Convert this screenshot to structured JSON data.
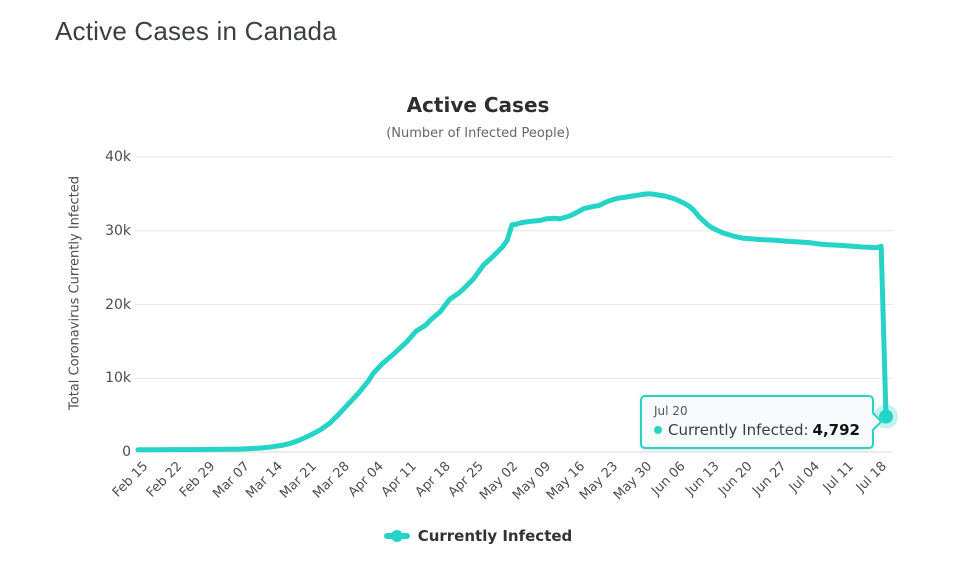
{
  "page": {
    "title": "Active Cases in Canada"
  },
  "chart_data": {
    "type": "line",
    "title": "Active Cases",
    "subtitle": "(Number of Infected People)",
    "xlabel": "",
    "ylabel": "Total Coronavirus Currently Infected",
    "ylim": [
      0,
      40000
    ],
    "grid": "horizontal",
    "legend_position": "bottom-center",
    "yticks": {
      "values": [
        0,
        10000,
        20000,
        30000,
        40000
      ],
      "labels": [
        "0",
        "10k",
        "20k",
        "30k",
        "40k"
      ]
    },
    "categories": [
      "Feb 15",
      "Feb 22",
      "Feb 29",
      "Mar 07",
      "Mar 14",
      "Mar 21",
      "Mar 28",
      "Apr 04",
      "Apr 11",
      "Apr 18",
      "Apr 25",
      "May 02",
      "May 09",
      "May 16",
      "May 23",
      "May 30",
      "Jun 06",
      "Jun 13",
      "Jun 20",
      "Jun 27",
      "Jul 04",
      "Jul 11",
      "Jul 18"
    ],
    "category_day_offsets": [
      0,
      7,
      14,
      21,
      28,
      35,
      42,
      49,
      56,
      63,
      70,
      77,
      84,
      91,
      98,
      105,
      112,
      119,
      126,
      133,
      140,
      147,
      154
    ],
    "x_total_days": 156,
    "series": [
      {
        "name": "Currently Infected",
        "color": "#26d3c7",
        "points": [
          [
            0,
            300
          ],
          [
            4,
            300
          ],
          [
            7,
            320
          ],
          [
            11,
            330
          ],
          [
            14,
            340
          ],
          [
            18,
            360
          ],
          [
            21,
            400
          ],
          [
            24,
            480
          ],
          [
            26,
            560
          ],
          [
            28,
            700
          ],
          [
            30,
            900
          ],
          [
            32,
            1200
          ],
          [
            34,
            1700
          ],
          [
            36,
            2300
          ],
          [
            38,
            3000
          ],
          [
            40,
            3900
          ],
          [
            42,
            5200
          ],
          [
            44,
            6600
          ],
          [
            46,
            8000
          ],
          [
            48,
            9600
          ],
          [
            49,
            10600
          ],
          [
            51,
            12000
          ],
          [
            53,
            13100
          ],
          [
            56,
            14900
          ],
          [
            58,
            16400
          ],
          [
            60,
            17200
          ],
          [
            61,
            17900
          ],
          [
            63,
            19000
          ],
          [
            65,
            20700
          ],
          [
            67,
            21600
          ],
          [
            68,
            22200
          ],
          [
            70,
            23500
          ],
          [
            72,
            25300
          ],
          [
            74,
            26500
          ],
          [
            76,
            27800
          ],
          [
            77,
            28700
          ],
          [
            78,
            30800
          ],
          [
            79,
            30900
          ],
          [
            80,
            31100
          ],
          [
            82,
            31300
          ],
          [
            84,
            31400
          ],
          [
            85,
            31600
          ],
          [
            87,
            31700
          ],
          [
            88,
            31600
          ],
          [
            90,
            32000
          ],
          [
            91,
            32300
          ],
          [
            93,
            33000
          ],
          [
            95,
            33300
          ],
          [
            96,
            33400
          ],
          [
            98,
            34000
          ],
          [
            100,
            34400
          ],
          [
            101,
            34500
          ],
          [
            103,
            34700
          ],
          [
            105,
            34900
          ],
          [
            106,
            35000
          ],
          [
            107,
            35000
          ],
          [
            108,
            34900
          ],
          [
            110,
            34700
          ],
          [
            112,
            34300
          ],
          [
            114,
            33700
          ],
          [
            115,
            33300
          ],
          [
            116,
            32700
          ],
          [
            117,
            31900
          ],
          [
            118,
            31300
          ],
          [
            119,
            30700
          ],
          [
            120,
            30300
          ],
          [
            121,
            30000
          ],
          [
            122,
            29700
          ],
          [
            123,
            29500
          ],
          [
            124,
            29300
          ],
          [
            126,
            29000
          ],
          [
            128,
            28900
          ],
          [
            130,
            28800
          ],
          [
            133,
            28700
          ],
          [
            135,
            28600
          ],
          [
            137,
            28500
          ],
          [
            140,
            28400
          ],
          [
            142,
            28200
          ],
          [
            144,
            28100
          ],
          [
            147,
            28000
          ],
          [
            149,
            27900
          ],
          [
            151,
            27800
          ],
          [
            154,
            27700
          ],
          [
            155,
            27900
          ],
          [
            156,
            4792
          ]
        ],
        "last_point": {
          "date": "Jul 20",
          "value": 4792,
          "value_label": "4,792"
        }
      }
    ]
  },
  "tooltip": {
    "date": "Jul 20",
    "label": "Currently Infected:",
    "value": "4,792"
  },
  "legend": {
    "label": "Currently Infected"
  },
  "colors": {
    "line": "#26d3c7",
    "marker_halo": "rgba(38,211,199,0.28)",
    "gridline": "#e6e6e6",
    "axis_line": "#d5dadd",
    "tick_text": "#4d4d4d",
    "title_text": "#2e2e2e",
    "page_title_text": "#3b4046"
  }
}
